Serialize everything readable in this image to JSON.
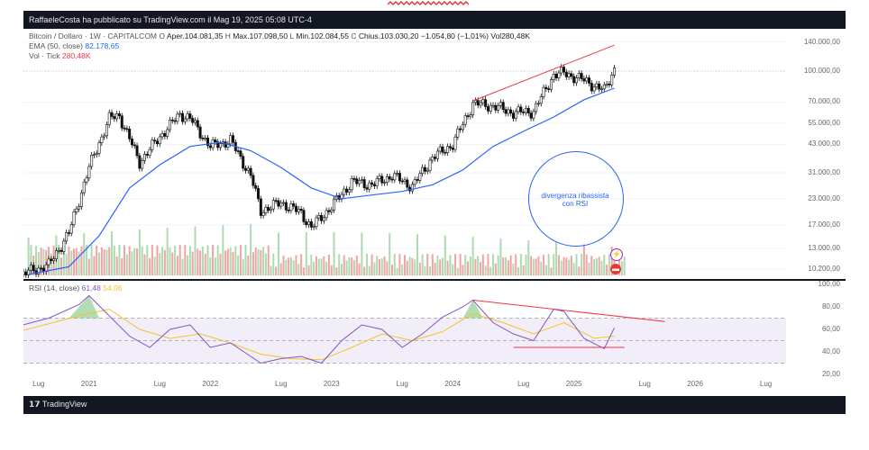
{
  "banner": {
    "text": "g                                                                                                              g"
  },
  "header": {
    "publisher_text": "RaffaeleCosta ha pubblicato su TradingView.com il Mag 19, 2025 05:08 UTC-4"
  },
  "main_pane": {
    "symbol_line": "Bitcoin / Dollaro · 1W · CAPITALCOM",
    "ohlc": {
      "o_label": "O",
      "o_value": "Aper.104.081,35",
      "h_label": "H",
      "h_value": "Max.107.098,50",
      "l_label": "L",
      "l_value": "Min.102.084,55",
      "c_label": "C",
      "c_value": "Chius.103.030,20",
      "change": "−1.054,80 (−1,01%)",
      "vol": "Vol280,48K"
    },
    "ema_label": "EMA (50, close)",
    "ema_value": "82.178,65",
    "vol_label": "Vol · Tick",
    "vol_value": "280,48K",
    "price_ticks": [
      "140.000,00",
      "100.000,00",
      "70.000,00",
      "55.000,00",
      "43.000,00",
      "31.000,00",
      "23.000,00",
      "17.000,00",
      "13.000,00",
      "10.200,00"
    ]
  },
  "rsi_pane": {
    "label": "RSI (14, close)",
    "rsi_value": "61,48",
    "ma_value": "54,06",
    "ticks": [
      "100,00",
      "80,00",
      "60,00",
      "40,00",
      "20,00"
    ]
  },
  "x_axis": {
    "ticks": [
      "Lug",
      "2021",
      "Lug",
      "2022",
      "Lug",
      "2023",
      "Lug",
      "2024",
      "Lug",
      "2025",
      "Lug",
      "2026",
      "Lug"
    ]
  },
  "annotation": {
    "line1": "divergenza ribassista",
    "line2": "con RSI"
  },
  "footer": {
    "brand": "TradingView"
  },
  "colors": {
    "ema": "#2962ff",
    "rsi": "#7e57c2",
    "rsi_ma": "#f7c325",
    "trend": "#f23645",
    "bg_dark": "#131722"
  },
  "chart_data": [
    {
      "type": "line",
      "title": "Bitcoin / Dollaro · 1W · CAPITALCOM",
      "y_scale": "log",
      "ylim": [
        9500,
        150000
      ],
      "x_range": [
        "2020-07",
        "2026-10"
      ],
      "series": [
        {
          "name": "Bitcoin / Dollaro",
          "kind": "candlestick-close",
          "x": [
            "2020-06",
            "2020-09",
            "2020-11",
            "2021-01",
            "2021-03",
            "2021-04",
            "2021-06",
            "2021-08",
            "2021-10",
            "2021-11",
            "2022-01",
            "2022-03",
            "2022-05",
            "2022-06",
            "2022-08",
            "2022-10",
            "2022-11",
            "2023-01",
            "2023-03",
            "2023-05",
            "2023-07",
            "2023-09",
            "2023-11",
            "2024-01",
            "2024-03",
            "2024-05",
            "2024-07",
            "2024-09",
            "2024-11",
            "2024-12",
            "2025-02",
            "2025-04",
            "2025-05"
          ],
          "values": [
            9500,
            10700,
            15500,
            33000,
            58000,
            60000,
            35000,
            47000,
            61000,
            58000,
            42000,
            45000,
            30000,
            20000,
            22000,
            19500,
            16500,
            21000,
            28000,
            27000,
            30000,
            26500,
            37000,
            43000,
            69000,
            67000,
            62000,
            63000,
            96000,
            98000,
            90000,
            80000,
            103030
          ]
        },
        {
          "name": "EMA (50, close)",
          "x": [
            "2020-07",
            "2020-11",
            "2021-02",
            "2021-05",
            "2021-08",
            "2021-11",
            "2022-02",
            "2022-05",
            "2022-08",
            "2022-11",
            "2023-02",
            "2023-05",
            "2023-08",
            "2023-11",
            "2024-02",
            "2024-05",
            "2024-08",
            "2024-11",
            "2025-02",
            "2025-05"
          ],
          "values": [
            9600,
            10500,
            15000,
            26000,
            34000,
            42000,
            44000,
            40000,
            33000,
            26000,
            23000,
            24000,
            25000,
            27000,
            32000,
            42000,
            50000,
            59000,
            72000,
            82178
          ]
        }
      ],
      "trendline": {
        "from": [
          "2024-03",
          71000
        ],
        "to": [
          "2025-05",
          135000
        ]
      },
      "annotation": "divergenza ribassista con RSI"
    },
    {
      "type": "line",
      "title": "RSI (14, close)",
      "ylim": [
        20,
        100
      ],
      "bands": [
        30,
        50,
        70
      ],
      "series": [
        {
          "name": "RSI",
          "x": [
            "2020-06",
            "2020-09",
            "2020-12",
            "2021-01",
            "2021-03",
            "2021-05",
            "2021-07",
            "2021-09",
            "2021-11",
            "2022-01",
            "2022-03",
            "2022-06",
            "2022-08",
            "2022-10",
            "2022-12",
            "2023-02",
            "2023-04",
            "2023-06",
            "2023-08",
            "2023-10",
            "2023-12",
            "2024-02",
            "2024-03",
            "2024-05",
            "2024-07",
            "2024-09",
            "2024-11",
            "2024-12",
            "2025-02",
            "2025-04",
            "2025-05"
          ],
          "values": [
            63,
            70,
            82,
            90,
            72,
            54,
            44,
            60,
            64,
            44,
            48,
            30,
            34,
            36,
            30,
            50,
            64,
            60,
            44,
            56,
            71,
            80,
            86,
            66,
            56,
            50,
            78,
            76,
            52,
            43,
            61.48
          ]
        },
        {
          "name": "RSI MA",
          "x": [
            "2020-06",
            "2020-12",
            "2021-03",
            "2021-06",
            "2021-09",
            "2021-12",
            "2022-03",
            "2022-06",
            "2022-09",
            "2022-12",
            "2023-03",
            "2023-06",
            "2023-09",
            "2023-12",
            "2024-03",
            "2024-06",
            "2024-09",
            "2024-12",
            "2025-03",
            "2025-05"
          ],
          "values": [
            58,
            72,
            78,
            60,
            52,
            56,
            48,
            38,
            34,
            33,
            44,
            56,
            50,
            58,
            74,
            66,
            56,
            66,
            52,
            54.06
          ]
        }
      ],
      "divergence_line": {
        "from": [
          "2024-03",
          86
        ],
        "to": [
          "2025-10",
          67
        ]
      },
      "support_line": {
        "from": [
          "2024-07",
          44
        ],
        "to": [
          "2025-06",
          44
        ]
      }
    }
  ]
}
